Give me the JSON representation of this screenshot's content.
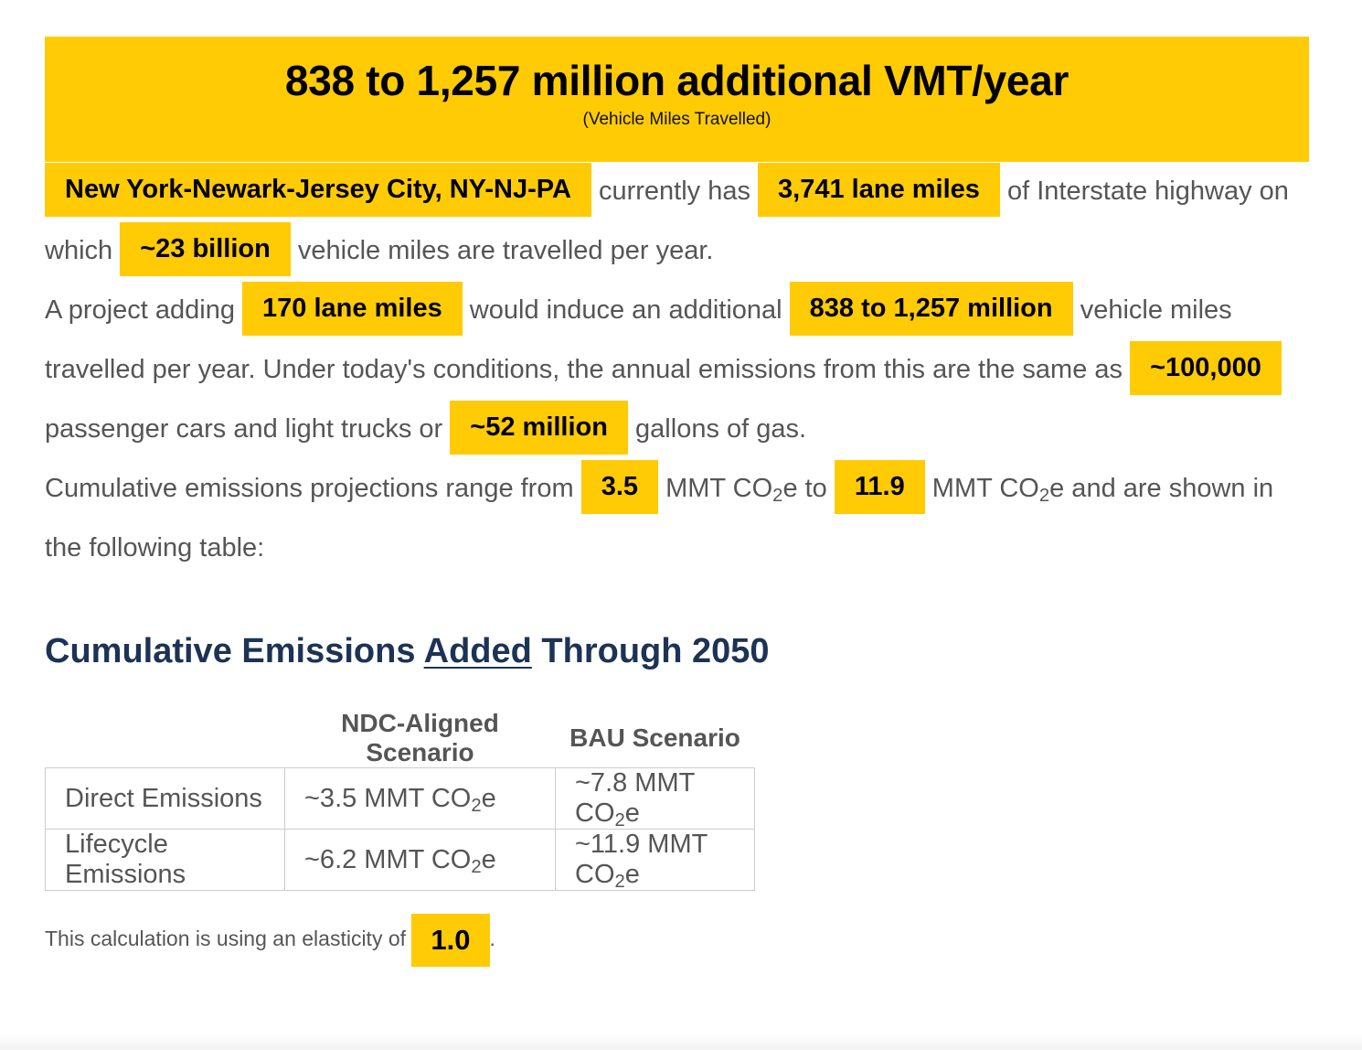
{
  "banner": {
    "title": "838 to 1,257 million additional VMT/year",
    "subtitle": "(Vehicle Miles Travelled)"
  },
  "summary": {
    "region": "New York-Newark-Jersey City, NY-NJ-PA",
    "text_currently_has": "currently has",
    "lane_miles": "3,741 lane miles",
    "text_interstate": "of Interstate highway on which",
    "vmt_per_year": "~23 billion",
    "text_vmt": "vehicle miles are travelled per year."
  },
  "project": {
    "text_adding": "A project adding",
    "added_lane_miles": "170 lane miles",
    "text_induce": "would induce an additional",
    "induced_vmt": "838 to 1,257 million",
    "text_equivalence": "vehicle miles travelled per year. Under today's conditions, the annual emissions from this are the same as",
    "cars_equivalent": "~100,000",
    "text_cars": "passenger cars and light trucks or",
    "gallons_equivalent": "~52 million",
    "text_gallons": "gallons of gas."
  },
  "cumulative": {
    "text_range_from": "Cumulative emissions projections range from",
    "low": "3.5",
    "text_mmt_to": "MMT CO",
    "text_to": "e to",
    "high": "11.9",
    "text_mmt": "MMT CO",
    "text_shown": "e and are shown in the following table:",
    "subscript": "2"
  },
  "table": {
    "title_before": "Cumulative Emissions",
    "title_underlined": "Added",
    "title_after": "Through 2050",
    "columns": [
      "",
      "NDC-Aligned Scenario",
      "BAU Scenario"
    ],
    "rows": [
      {
        "label": "Direct Emissions",
        "ndc": "~3.5 MMT CO",
        "bau": "~7.8 MMT CO",
        "unit_suffix": "e"
      },
      {
        "label": "Lifecycle Emissions",
        "ndc": "~6.2 MMT CO",
        "bau": "~11.9 MMT CO",
        "unit_suffix": "e"
      }
    ]
  },
  "footnote": {
    "text": "This calculation is using an elasticity of",
    "elasticity": "1.0",
    "period": "."
  },
  "colors": {
    "highlight": "#FFCB05",
    "heading": "#1D3355",
    "body_text": "#555555"
  }
}
